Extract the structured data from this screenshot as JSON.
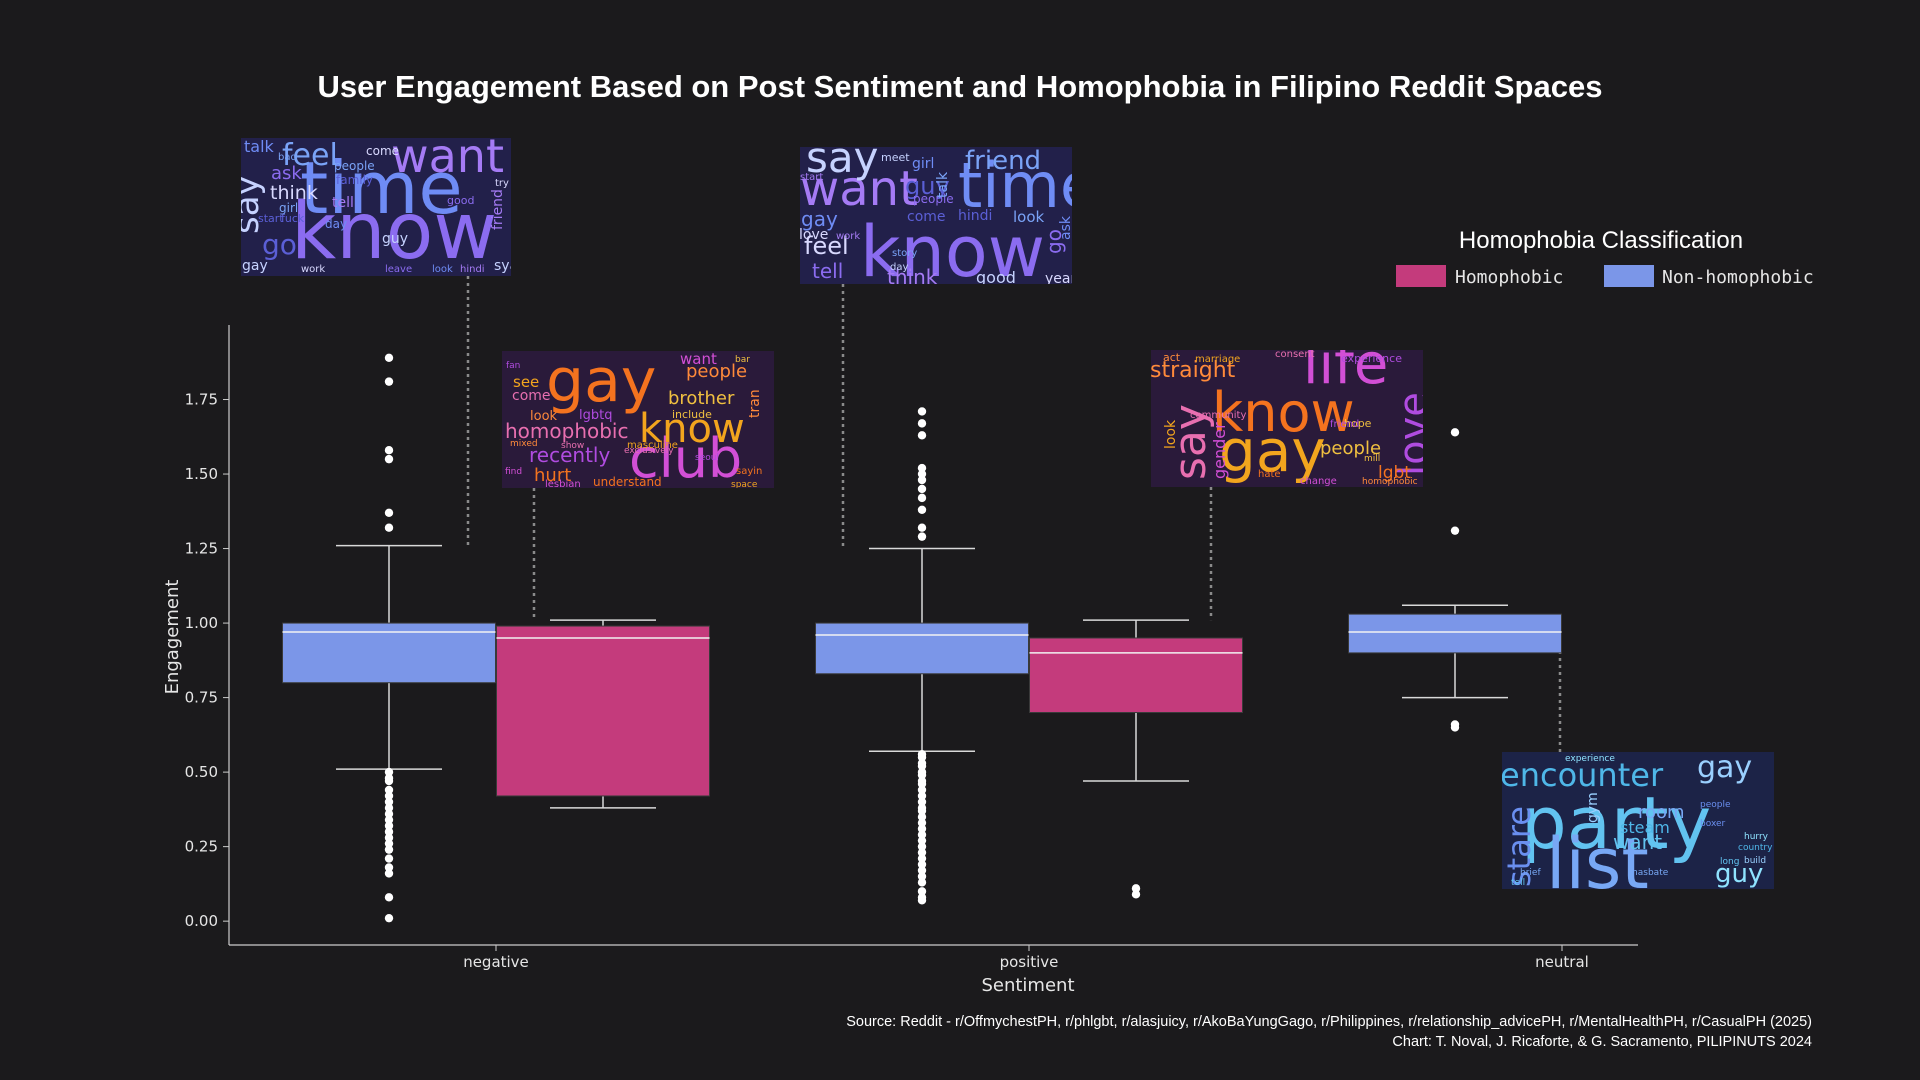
{
  "colors": {
    "background": "#1b1a1c",
    "homophobic": "#c43b7c",
    "non_homophobic": "#7b96e8",
    "whisker": "#d9d9d9",
    "axis": "#cccccc"
  },
  "chart_data": {
    "type": "box",
    "title": "User Engagement Based on Post Sentiment and Homophobia in Filipino Reddit Spaces",
    "xlabel": "Sentiment",
    "ylabel": "Engagement",
    "ylim": [
      -0.08,
      2.0
    ],
    "yticks": [
      "0.00",
      "0.25",
      "0.50",
      "0.75",
      "1.00",
      "1.25",
      "1.50",
      "1.75"
    ],
    "categories": [
      "negative",
      "positive",
      "neutral"
    ],
    "legend_title": "Homophobia Classification",
    "series": [
      {
        "name": "Non-homophobic",
        "color_key": "non_homophobic",
        "boxes": [
          {
            "category": "negative",
            "q1": 0.8,
            "median": 0.97,
            "q3": 1.0,
            "whisker_low": 0.51,
            "whisker_high": 1.26,
            "outliers": [
              1.89,
              1.81,
              1.58,
              1.55,
              1.37,
              1.32,
              0.5,
              0.48,
              0.47,
              0.44,
              0.42,
              0.4,
              0.38,
              0.36,
              0.34,
              0.32,
              0.3,
              0.28,
              0.26,
              0.24,
              0.21,
              0.18,
              0.16,
              0.08,
              0.01
            ]
          },
          {
            "category": "positive",
            "q1": 0.83,
            "median": 0.96,
            "q3": 1.0,
            "whisker_low": 0.57,
            "whisker_high": 1.25,
            "outliers": [
              1.71,
              1.67,
              1.63,
              1.52,
              1.5,
              1.48,
              1.45,
              1.42,
              1.38,
              1.32,
              1.29,
              0.56,
              0.55,
              0.53,
              0.52,
              0.5,
              0.49,
              0.47,
              0.46,
              0.44,
              0.42,
              0.4,
              0.38,
              0.37,
              0.35,
              0.33,
              0.31,
              0.29,
              0.27,
              0.25,
              0.23,
              0.21,
              0.19,
              0.17,
              0.15,
              0.13,
              0.1,
              0.08,
              0.07
            ]
          },
          {
            "category": "neutral",
            "q1": 0.9,
            "median": 0.97,
            "q3": 1.03,
            "whisker_low": 0.75,
            "whisker_high": 1.06,
            "outliers": [
              1.64,
              1.31,
              0.66,
              0.65
            ]
          }
        ]
      },
      {
        "name": "Homophobic",
        "color_key": "homophobic",
        "boxes": [
          {
            "category": "negative",
            "q1": 0.42,
            "median": 0.95,
            "q3": 0.99,
            "whisker_low": 0.38,
            "whisker_high": 1.01,
            "outliers": []
          },
          {
            "category": "positive",
            "q1": 0.7,
            "median": 0.9,
            "q3": 0.95,
            "whisker_low": 0.47,
            "whisker_high": 1.01,
            "outliers": [
              0.11,
              0.09
            ]
          }
        ]
      }
    ],
    "source": "Source: Reddit - r/OffmychestPH, r/phlgbt, r/alasjuicy, r/AkoBaYungGago, r/Philippines, r/relationship_advicePH, r/MentalHealthPH, r/CasualPH (2025)",
    "credit": "Chart: T. Noval, J. Ricaforte, & G. Sacramento, PILIPINUTS 2024"
  },
  "word_clouds": [
    {
      "category": "negative",
      "series": "Non-homophobic",
      "palette": "purple-blue",
      "words": [
        "know",
        "time",
        "want",
        "say",
        "feel",
        "go",
        "think",
        "ask",
        "talk",
        "tell",
        "guy",
        "people",
        "family",
        "come",
        "good",
        "day",
        "friend",
        "sya",
        "girl",
        "fuck",
        "work",
        "leave",
        "look",
        "hindi",
        "gay",
        "bad",
        "start",
        "try"
      ]
    },
    {
      "category": "negative",
      "series": "Homophobic",
      "palette": "magenta-orange",
      "words": [
        "gay",
        "club",
        "know",
        "homophobic",
        "recently",
        "people",
        "brother",
        "hurt",
        "want",
        "see",
        "come",
        "lgbtq",
        "look",
        "include",
        "understand",
        "lesbian",
        "masculine",
        "exclusively",
        "seoul",
        "tran",
        "bar",
        "sayin",
        "find",
        "space",
        "show",
        "fan",
        "mixed",
        "drag",
        "station"
      ]
    },
    {
      "category": "positive",
      "series": "Non-homophobic",
      "palette": "purple-blue",
      "words": [
        "know",
        "time",
        "want",
        "say",
        "friend",
        "guy",
        "feel",
        "tell",
        "gay",
        "think",
        "good",
        "look",
        "come",
        "love",
        "people",
        "girl",
        "start",
        "meet",
        "talk",
        "hindi",
        "year",
        "go",
        "ask",
        "work",
        "day",
        "story"
      ]
    },
    {
      "category": "positive",
      "series": "Homophobic",
      "palette": "magenta-orange",
      "words": [
        "know",
        "life",
        "gay",
        "say",
        "love",
        "straight",
        "people",
        "lgbt",
        "gender",
        "look",
        "community",
        "experience",
        "act",
        "hope",
        "hate",
        "change",
        "marriage",
        "consent",
        "friend",
        "homophobic",
        "mill"
      ]
    },
    {
      "category": "neutral",
      "series": "Non-homophobic",
      "palette": "cyan-blue",
      "words": [
        "party",
        "list",
        "encounter",
        "gay",
        "stare",
        "guy",
        "want",
        "room",
        "steam",
        "gym",
        "boxer",
        "experience",
        "tell",
        "brief",
        "country",
        "build",
        "people",
        "hurry",
        "long",
        "masbate"
      ]
    }
  ]
}
